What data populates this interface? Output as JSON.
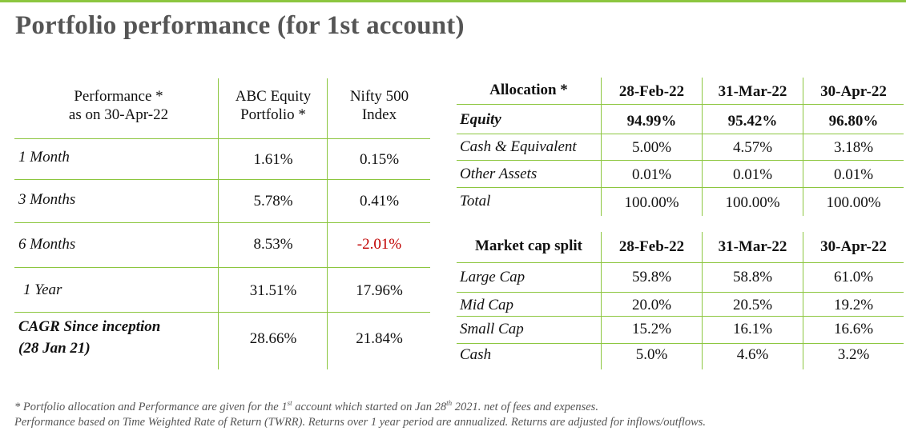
{
  "title": "Portfolio performance (for 1st account)",
  "accent_color": "#8cc63f",
  "negative_color": "#c00000",
  "performance_table": {
    "header_line1": "Performance *",
    "header_line2": "as on 30-Apr-22",
    "col1_line1": "ABC Equity",
    "col1_line2": "Portfolio *",
    "col2_line1": "Nifty 500",
    "col2_line2": "Index",
    "rows": [
      {
        "label": "1 Month",
        "portfolio": "1.61%",
        "index": "0.15%"
      },
      {
        "label": "3 Months",
        "portfolio": "5.78%",
        "index": "0.41%"
      },
      {
        "label": "6 Months",
        "portfolio": "8.53%",
        "index": "-2.01%"
      },
      {
        "label": "1 Year",
        "portfolio": "31.51%",
        "index": "17.96%"
      },
      {
        "label_line1": "CAGR Since inception",
        "label_line2": "(28 Jan 21)",
        "portfolio": "28.66%",
        "index": "21.84%"
      }
    ]
  },
  "allocation_table": {
    "header": "Allocation *",
    "dates": [
      "28-Feb-22",
      "31-Mar-22",
      "30-Apr-22"
    ],
    "rows": [
      {
        "label": "Equity",
        "values": [
          "94.99%",
          "95.42%",
          "96.80%"
        ]
      },
      {
        "label": "Cash & Equivalent",
        "values": [
          "5.00%",
          "4.57%",
          "3.18%"
        ]
      },
      {
        "label": "Other Assets",
        "values": [
          "0.01%",
          "0.01%",
          "0.01%"
        ]
      },
      {
        "label": "Total",
        "values": [
          "100.00%",
          "100.00%",
          "100.00%"
        ]
      }
    ]
  },
  "marketcap_table": {
    "header": "Market cap split",
    "dates": [
      "28-Feb-22",
      "31-Mar-22",
      "30-Apr-22"
    ],
    "rows": [
      {
        "label": "Large Cap",
        "values": [
          "59.8%",
          "58.8%",
          "61.0%"
        ]
      },
      {
        "label": "Mid Cap",
        "values": [
          "20.0%",
          "20.5%",
          "19.2%"
        ]
      },
      {
        "label": "Small Cap",
        "values": [
          "15.2%",
          "16.1%",
          "16.6%"
        ]
      },
      {
        "label": "Cash",
        "values": [
          "5.0%",
          "4.6%",
          "3.2%"
        ]
      }
    ]
  },
  "footnotes": {
    "line1_a": "* Portfolio allocation and Performance are given for the 1",
    "line1_sup1": "st",
    "line1_b": " account which started on Jan 28",
    "line1_sup2": "th",
    "line1_c": " 2021.  net of fees and expenses.",
    "line2": "Performance based on Time Weighted Rate of Return (TWRR). Returns over 1 year period are annualized. Returns are adjusted for inflows/outflows."
  }
}
